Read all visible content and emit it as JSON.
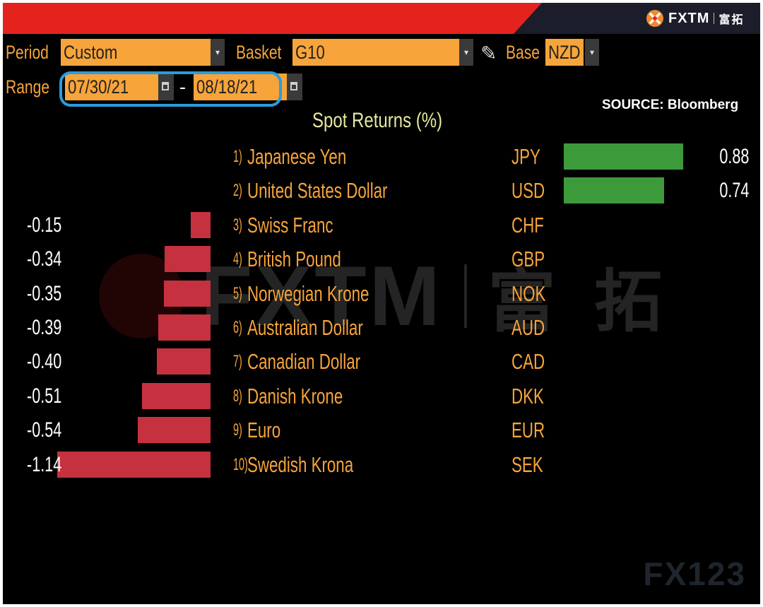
{
  "brand": {
    "name": "FXTM",
    "chinese_name": "富拓",
    "colors": {
      "red": "#e4231f",
      "dark": "#1b1d2a"
    }
  },
  "controls": {
    "period_label": "Period",
    "period_value": "Custom",
    "basket_label": "Basket",
    "basket_value": "G10",
    "base_label": "Base",
    "base_value": "NZD",
    "range_label": "Range",
    "range_start": "07/30/21",
    "range_separator": "-",
    "range_end": "08/18/21"
  },
  "source": "SOURCE: Bloomberg",
  "chart_data": {
    "type": "bar",
    "title": "Spot Returns (%)",
    "categories": [
      "Japanese Yen",
      "United States Dollar",
      "Swiss Franc",
      "British Pound",
      "Norwegian Krone",
      "Australian Dollar",
      "Canadian Dollar",
      "Danish Krone",
      "Euro",
      "Swedish Krona"
    ],
    "ranks": [
      "1)",
      "2)",
      "3)",
      "4)",
      "5)",
      "6)",
      "7)",
      "8)",
      "9)",
      "10)"
    ],
    "codes": [
      "JPY",
      "USD",
      "CHF",
      "GBP",
      "NOK",
      "AUD",
      "CAD",
      "DKK",
      "EUR",
      "SEK"
    ],
    "values": [
      0.88,
      0.74,
      -0.15,
      -0.34,
      -0.35,
      -0.39,
      -0.4,
      -0.51,
      -0.54,
      -1.14
    ],
    "value_labels": [
      "0.88",
      "0.74",
      "-0.15",
      "-0.34",
      "-0.35",
      "-0.39",
      "-0.40",
      "-0.51",
      "-0.54",
      "-1.14"
    ],
    "colors": {
      "positive": "#3d9a3a",
      "negative": "#c63140"
    }
  },
  "watermarks": {
    "center": "FXTM",
    "center_cn": "富 拓",
    "corner": "FX123"
  }
}
